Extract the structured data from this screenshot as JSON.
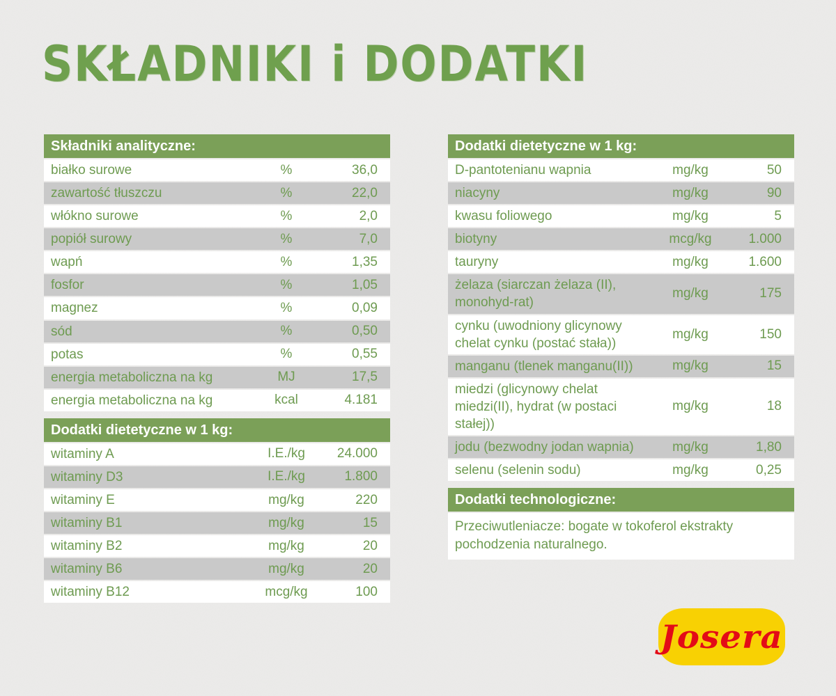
{
  "title": "SKŁADNIKI i DODATKI",
  "colors": {
    "header_bg": "#7ba058",
    "row_text": "#6e9b51",
    "row_alt_bg": "#c9c9c9",
    "page_bg": "#edeceb",
    "title_green": "#6fa04e",
    "logo_bg": "#f8d103",
    "logo_text": "#e30b17"
  },
  "left_column": {
    "analytical": {
      "header": "Składniki analityczne:",
      "rows": [
        {
          "name": "białko surowe",
          "unit": "%",
          "value": "36,0"
        },
        {
          "name": "zawartość tłuszczu",
          "unit": "%",
          "value": "22,0"
        },
        {
          "name": "włókno surowe",
          "unit": "%",
          "value": "2,0"
        },
        {
          "name": "popiół surowy",
          "unit": "%",
          "value": "7,0"
        },
        {
          "name": "wapń",
          "unit": "%",
          "value": "1,35"
        },
        {
          "name": "fosfor",
          "unit": "%",
          "value": "1,05"
        },
        {
          "name": "magnez",
          "unit": "%",
          "value": "0,09"
        },
        {
          "name": "sód",
          "unit": "%",
          "value": "0,50"
        },
        {
          "name": "potas",
          "unit": "%",
          "value": "0,55"
        },
        {
          "name": "energia metaboliczna na kg",
          "unit": "MJ",
          "value": "17,5"
        },
        {
          "name": "energia metaboliczna na kg",
          "unit": "kcal",
          "value": "4.181"
        }
      ]
    },
    "dietary": {
      "header": "Dodatki dietetyczne w 1 kg:",
      "rows": [
        {
          "name": "witaminy A",
          "unit": "I.E./kg",
          "value": "24.000"
        },
        {
          "name": "witaminy D3",
          "unit": "I.E./kg",
          "value": "1.800"
        },
        {
          "name": "witaminy E",
          "unit": "mg/kg",
          "value": "220"
        },
        {
          "name": "witaminy B1",
          "unit": "mg/kg",
          "value": "15"
        },
        {
          "name": "witaminy B2",
          "unit": "mg/kg",
          "value": "20"
        },
        {
          "name": "witaminy B6",
          "unit": "mg/kg",
          "value": "20"
        },
        {
          "name": "witaminy B12",
          "unit": "mcg/kg",
          "value": "100"
        }
      ]
    }
  },
  "right_column": {
    "dietary": {
      "header": "Dodatki dietetyczne w 1 kg:",
      "rows": [
        {
          "name": "D-pantotenianu wapnia",
          "unit": "mg/kg",
          "value": "50"
        },
        {
          "name": "niacyny",
          "unit": "mg/kg",
          "value": "90"
        },
        {
          "name": "kwasu foliowego",
          "unit": "mg/kg",
          "value": "5"
        },
        {
          "name": "biotyny",
          "unit": "mcg/kg",
          "value": "1.000"
        },
        {
          "name": "tauryny",
          "unit": "mg/kg",
          "value": "1.600"
        },
        {
          "name": "żelaza (siarczan żelaza (II), monohyd-rat)",
          "unit": "mg/kg",
          "value": "175"
        },
        {
          "name": "cynku (uwodniony glicynowy chelat cynku (postać stała))",
          "unit": "mg/kg",
          "value": "150"
        },
        {
          "name": "manganu (tlenek manganu(II))",
          "unit": "mg/kg",
          "value": "15"
        },
        {
          "name": "miedzi (glicynowy chelat miedzi(II), hydrat (w postaci stałej))",
          "unit": "mg/kg",
          "value": "18"
        },
        {
          "name": "jodu (bezwodny jodan wapnia)",
          "unit": "mg/kg",
          "value": "1,80"
        },
        {
          "name": "selenu (selenin sodu)",
          "unit": "mg/kg",
          "value": "0,25"
        }
      ]
    },
    "technological": {
      "header": "Dodatki technologiczne:",
      "text": "Przeciwutleniacze: bogate w tokoferol ekstrakty pochodzenia naturalnego."
    }
  },
  "logo": {
    "text": "Josera"
  }
}
